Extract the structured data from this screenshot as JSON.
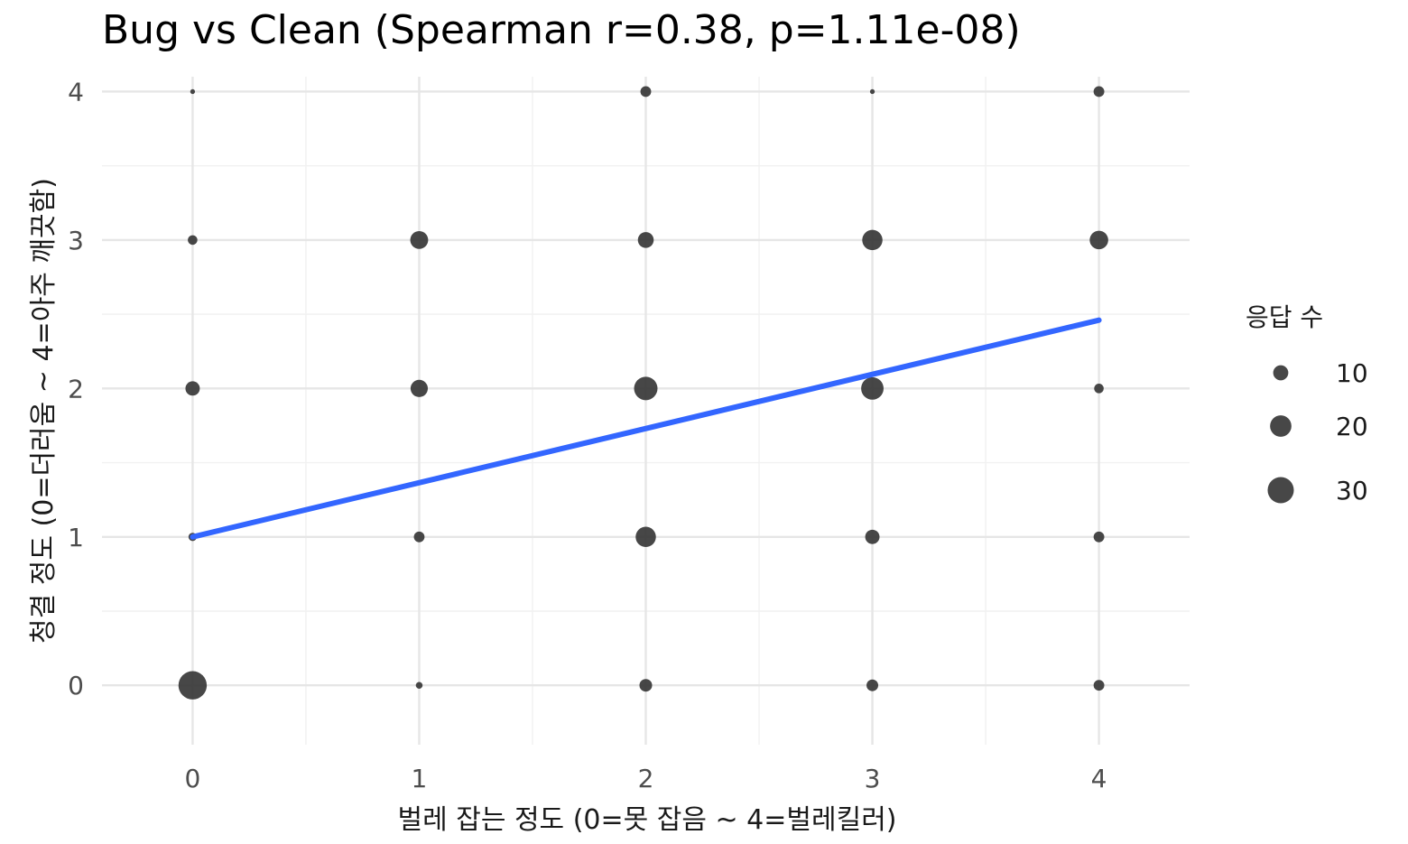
{
  "chart_data": {
    "type": "scatter",
    "title": "Bug vs Clean (Spearman r=0.38, p=1.11e-08)",
    "xlabel": "벌레 잡는 정도 (0=못 잡음 ~ 4=벌레킬러)",
    "ylabel": "청결 정도 (0=더러움 ~ 4=아주 깨끗함)",
    "xlim": [
      -0.4,
      4.4
    ],
    "ylim": [
      -0.4,
      4.1
    ],
    "x_ticks": [
      "0",
      "1",
      "2",
      "3",
      "4"
    ],
    "y_ticks": [
      "0",
      "1",
      "2",
      "3",
      "4"
    ],
    "grid": true,
    "legend_position": "right",
    "size_legend": {
      "title": "응답 수",
      "entries": [
        {
          "value": 10,
          "label": "10"
        },
        {
          "value": 20,
          "label": "20"
        },
        {
          "value": 30,
          "label": "30"
        }
      ]
    },
    "point_color": "#333333",
    "trend_color": "#3366ff",
    "points": [
      {
        "x": 0,
        "y": 0,
        "n": 35
      },
      {
        "x": 0,
        "y": 1,
        "n": 3
      },
      {
        "x": 0,
        "y": 2,
        "n": 9
      },
      {
        "x": 0,
        "y": 3,
        "n": 4
      },
      {
        "x": 0,
        "y": 4,
        "n": 1
      },
      {
        "x": 1,
        "y": 0,
        "n": 2
      },
      {
        "x": 1,
        "y": 1,
        "n": 5
      },
      {
        "x": 1,
        "y": 2,
        "n": 13
      },
      {
        "x": 1,
        "y": 3,
        "n": 14
      },
      {
        "x": 2,
        "y": 0,
        "n": 7
      },
      {
        "x": 2,
        "y": 1,
        "n": 18
      },
      {
        "x": 2,
        "y": 2,
        "n": 24
      },
      {
        "x": 2,
        "y": 3,
        "n": 11
      },
      {
        "x": 2,
        "y": 4,
        "n": 5
      },
      {
        "x": 3,
        "y": 0,
        "n": 6
      },
      {
        "x": 3,
        "y": 1,
        "n": 9
      },
      {
        "x": 3,
        "y": 2,
        "n": 22
      },
      {
        "x": 3,
        "y": 3,
        "n": 18
      },
      {
        "x": 3,
        "y": 4,
        "n": 1
      },
      {
        "x": 4,
        "y": 0,
        "n": 5
      },
      {
        "x": 4,
        "y": 1,
        "n": 5
      },
      {
        "x": 4,
        "y": 2,
        "n": 4
      },
      {
        "x": 4,
        "y": 3,
        "n": 15
      },
      {
        "x": 4,
        "y": 4,
        "n": 5
      }
    ],
    "trend_line": {
      "x": [
        0,
        4
      ],
      "y": [
        1.0,
        2.46
      ]
    }
  }
}
